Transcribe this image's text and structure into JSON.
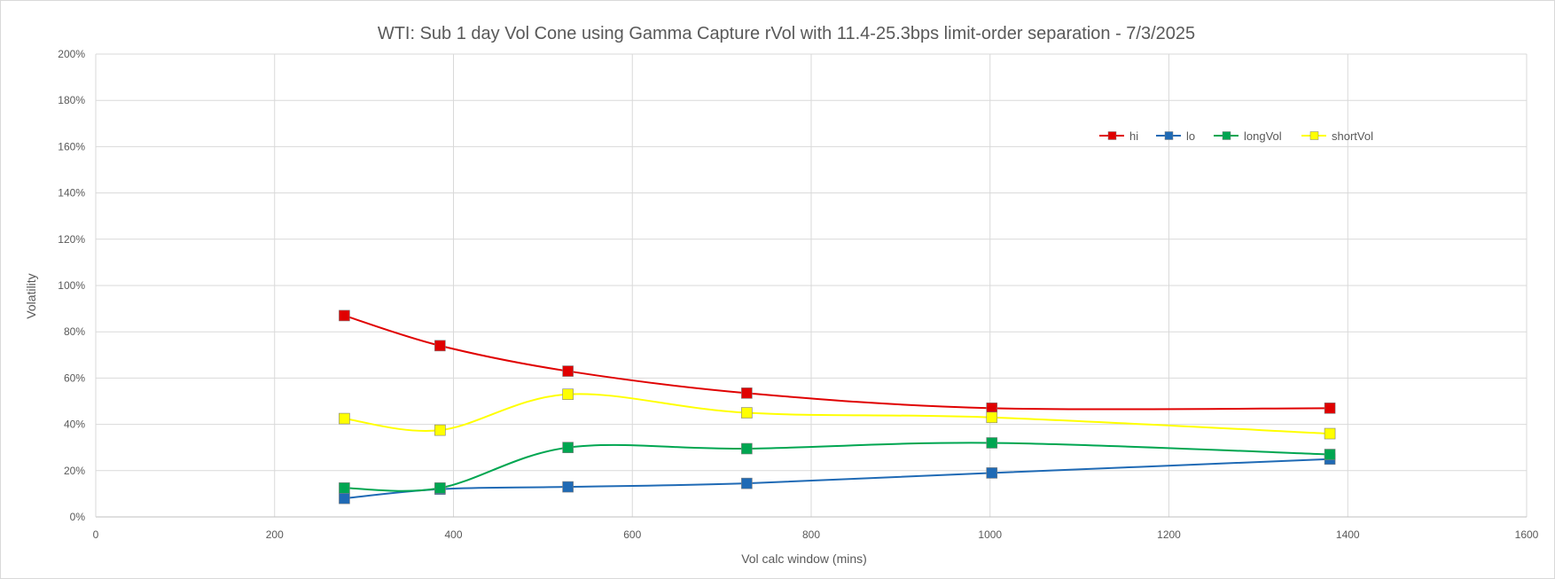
{
  "chart_data": {
    "type": "line",
    "title": "WTI: Sub 1 day Vol Cone using Gamma Capture rVol with 11.4-25.3bps limit-order separation - 7/3/2025",
    "xlabel": "Vol calc window (mins)",
    "ylabel": "Volatility",
    "xlim": [
      0,
      1600
    ],
    "ylim": [
      0,
      2.0
    ],
    "x_ticks": [
      0,
      200,
      400,
      600,
      800,
      1000,
      1200,
      1400,
      1600
    ],
    "y_ticks": [
      0,
      0.2,
      0.4,
      0.6,
      0.8,
      1.0,
      1.2,
      1.4,
      1.6,
      1.8,
      2.0
    ],
    "y_tick_labels": [
      "0%",
      "20%",
      "40%",
      "60%",
      "80%",
      "100%",
      "120%",
      "140%",
      "160%",
      "180%",
      "200%"
    ],
    "grid": true,
    "legend_position": "top-right",
    "x": [
      278,
      385,
      528,
      728,
      1002,
      1380
    ],
    "series": [
      {
        "name": "hi",
        "color": "#e00000",
        "values": [
          0.87,
          0.74,
          0.63,
          0.535,
          0.47,
          0.47
        ]
      },
      {
        "name": "lo",
        "color": "#1f6ab5",
        "values": [
          0.08,
          0.12,
          0.13,
          0.145,
          0.19,
          0.25
        ]
      },
      {
        "name": "longVol",
        "color": "#00a651",
        "values": [
          0.125,
          0.125,
          0.3,
          0.295,
          0.32,
          0.27
        ]
      },
      {
        "name": "shortVol",
        "color": "#ffff00",
        "values": [
          0.425,
          0.375,
          0.53,
          0.45,
          0.43,
          0.36
        ]
      }
    ]
  }
}
